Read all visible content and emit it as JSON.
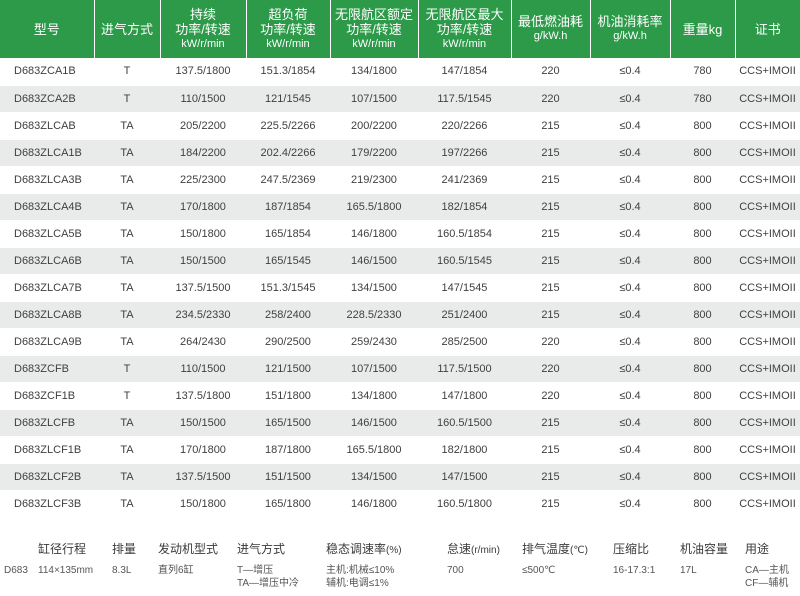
{
  "table": {
    "headers": [
      {
        "line1": "型号",
        "line2": ""
      },
      {
        "line1": "进气方式",
        "line2": ""
      },
      {
        "line1": "持续",
        "line2": "功率/转速",
        "line3": "kW/r/min"
      },
      {
        "line1": "超负荷",
        "line2": "功率/转速",
        "line3": "kW/r/min"
      },
      {
        "line1": "无限航区额定",
        "line2": "功率/转速",
        "line3": "kW/r/min"
      },
      {
        "line1": "无限航区最大",
        "line2": "功率/转速",
        "line3": "kW/r/min"
      },
      {
        "line1": "最低燃油耗",
        "line2": "g/kW.h",
        "line3": ""
      },
      {
        "line1": "机油消耗率",
        "line2": "g/kW.h",
        "line3": ""
      },
      {
        "line1": "重量kg",
        "line2": ""
      },
      {
        "line1": "证书",
        "line2": ""
      }
    ],
    "rows": [
      [
        "D683ZCA1B",
        "T",
        "137.5/1800",
        "151.3/1854",
        "134/1800",
        "147/1854",
        "220",
        "≤0.4",
        "780",
        "CCS+IMOII"
      ],
      [
        "D683ZCA2B",
        "T",
        "110/1500",
        "121/1545",
        "107/1500",
        "117.5/1545",
        "220",
        "≤0.4",
        "780",
        "CCS+IMOII"
      ],
      [
        "D683ZLCAB",
        "TA",
        "205/2200",
        "225.5/2266",
        "200/2200",
        "220/2266",
        "215",
        "≤0.4",
        "800",
        "CCS+IMOII"
      ],
      [
        "D683ZLCA1B",
        "TA",
        "184/2200",
        "202.4/2266",
        "179/2200",
        "197/2266",
        "215",
        "≤0.4",
        "800",
        "CCS+IMOII"
      ],
      [
        "D683ZLCA3B",
        "TA",
        "225/2300",
        "247.5/2369",
        "219/2300",
        "241/2369",
        "215",
        "≤0.4",
        "800",
        "CCS+IMOII"
      ],
      [
        "D683ZLCA4B",
        "TA",
        "170/1800",
        "187/1854",
        "165.5/1800",
        "182/1854",
        "215",
        "≤0.4",
        "800",
        "CCS+IMOII"
      ],
      [
        "D683ZLCA5B",
        "TA",
        "150/1800",
        "165/1854",
        "146/1800",
        "160.5/1854",
        "215",
        "≤0.4",
        "800",
        "CCS+IMOII"
      ],
      [
        "D683ZLCA6B",
        "TA",
        "150/1500",
        "165/1545",
        "146/1500",
        "160.5/1545",
        "215",
        "≤0.4",
        "800",
        "CCS+IMOII"
      ],
      [
        "D683ZLCA7B",
        "TA",
        "137.5/1500",
        "151.3/1545",
        "134/1500",
        "147/1545",
        "215",
        "≤0.4",
        "800",
        "CCS+IMOII"
      ],
      [
        "D683ZLCA8B",
        "TA",
        "234.5/2330",
        "258/2400",
        "228.5/2330",
        "251/2400",
        "215",
        "≤0.4",
        "800",
        "CCS+IMOII"
      ],
      [
        "D683ZLCA9B",
        "TA",
        "264/2430",
        "290/2500",
        "259/2430",
        "285/2500",
        "220",
        "≤0.4",
        "800",
        "CCS+IMOII"
      ],
      [
        "D683ZCFB",
        "T",
        "110/1500",
        "121/1500",
        "107/1500",
        "117.5/1500",
        "220",
        "≤0.4",
        "800",
        "CCS+IMOII"
      ],
      [
        "D683ZCF1B",
        "T",
        "137.5/1800",
        "151/1800",
        "134/1800",
        "147/1800",
        "220",
        "≤0.4",
        "800",
        "CCS+IMOII"
      ],
      [
        "D683ZLCFB",
        "TA",
        "150/1500",
        "165/1500",
        "146/1500",
        "160.5/1500",
        "215",
        "≤0.4",
        "800",
        "CCS+IMOII"
      ],
      [
        "D683ZLCF1B",
        "TA",
        "170/1800",
        "187/1800",
        "165.5/1800",
        "182/1800",
        "215",
        "≤0.4",
        "800",
        "CCS+IMOII"
      ],
      [
        "D683ZLCF2B",
        "TA",
        "137.5/1500",
        "151/1500",
        "134/1500",
        "147/1500",
        "215",
        "≤0.4",
        "800",
        "CCS+IMOII"
      ],
      [
        "D683ZLCF3B",
        "TA",
        "150/1800",
        "165/1800",
        "146/1800",
        "160.5/1800",
        "215",
        "≤0.4",
        "800",
        "CCS+IMOII"
      ]
    ]
  },
  "bottom": {
    "headers": {
      "bore_stroke": "缸径行程",
      "displacement": "排量",
      "engine_type": "发动机型式",
      "intake": "进气方式",
      "speed_reg": "稳态调速率",
      "speed_reg_unit": "(%)",
      "idle": "怠速",
      "idle_unit": "(r/min)",
      "exhaust_temp": "排气温度",
      "exhaust_temp_unit": "(℃)",
      "compression": "压缩比",
      "oil_capacity": "机油容量",
      "usage": "用途"
    },
    "values": {
      "model": "D683",
      "bore_stroke": "114×135mm",
      "displacement": "8.3L",
      "engine_type": "直列6缸",
      "intake_line1": "T—增压",
      "intake_line2": "TA—增压中冷",
      "speed_reg_line1": "主机:机械≤10%",
      "speed_reg_line2": "辅机:电调≤1%",
      "idle": "700",
      "exhaust_temp": "≤500℃",
      "compression": "16-17.3:1",
      "oil_capacity": "17L",
      "usage_line1": "CA—主机",
      "usage_line2": "CF—辅机"
    }
  }
}
